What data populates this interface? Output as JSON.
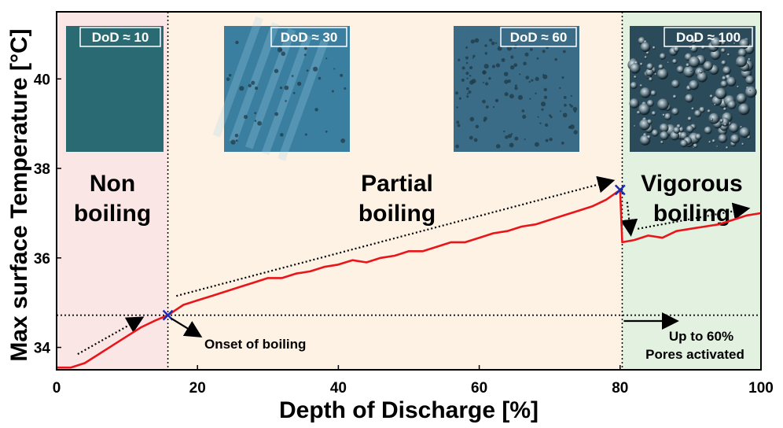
{
  "chart_data": {
    "type": "line",
    "xlabel": "Depth of Discharge [%]",
    "ylabel": "Max surface Temperature [°C]",
    "xlim": [
      0,
      100
    ],
    "ylim": [
      33.5,
      41.5
    ],
    "x_ticks": [
      0,
      20,
      40,
      60,
      80,
      100
    ],
    "y_ticks": [
      34,
      36,
      38,
      40
    ],
    "grid": false,
    "series": [
      {
        "color": "#e8151b",
        "x": [
          0,
          2,
          4,
          6,
          8,
          10,
          12,
          14,
          15.8,
          18,
          20,
          22,
          24,
          26,
          28,
          30,
          32,
          34,
          36,
          38,
          40,
          42,
          44,
          46,
          48,
          50,
          52,
          54,
          56,
          58,
          60,
          62,
          64,
          66,
          68,
          70,
          72,
          74,
          76,
          78,
          80,
          80.3,
          82,
          84,
          86,
          88,
          90,
          92,
          94,
          96,
          98,
          100
        ],
        "y": [
          33.55,
          33.55,
          33.65,
          33.85,
          34.05,
          34.25,
          34.45,
          34.6,
          34.72,
          34.95,
          35.05,
          35.15,
          35.25,
          35.35,
          35.45,
          35.55,
          35.55,
          35.65,
          35.7,
          35.8,
          35.85,
          35.95,
          35.9,
          36.0,
          36.05,
          36.15,
          36.15,
          36.25,
          36.35,
          36.35,
          36.45,
          36.55,
          36.6,
          36.7,
          36.75,
          36.85,
          36.95,
          37.05,
          37.15,
          37.3,
          37.52,
          36.35,
          36.4,
          36.5,
          36.45,
          36.6,
          36.65,
          36.7,
          36.75,
          36.85,
          36.95,
          37.0
        ]
      }
    ],
    "regions": [
      {
        "label_line1": "Non",
        "label_line2": "boiling",
        "x_range": [
          0,
          15.8
        ],
        "color": "#fbe6e6"
      },
      {
        "label_line1": "Partial",
        "label_line2": "boiling",
        "x_range": [
          15.8,
          80.3
        ],
        "color": "#fdf2e4"
      },
      {
        "label_line1": "Vigorous",
        "label_line2": "boiling",
        "x_range": [
          80.3,
          100
        ],
        "color": "#e3f1e1"
      }
    ],
    "markers": [
      {
        "x": 15.8,
        "y": 34.72,
        "symbol": "x",
        "color": "#1f2aa8"
      },
      {
        "x": 80.0,
        "y": 37.52,
        "symbol": "x",
        "color": "#1f2aa8"
      }
    ],
    "reference_line_y": 34.72,
    "annotations": [
      {
        "text": "Onset of boiling"
      },
      {
        "text_line1": "Up to 60%",
        "text_line2": "Pores activated"
      }
    ],
    "insets": [
      {
        "label": "DoD ≈ 10",
        "style": "smooth"
      },
      {
        "label": "DoD ≈ 30",
        "style": "few-bubbles"
      },
      {
        "label": "DoD ≈ 60",
        "style": "many-small-bubbles"
      },
      {
        "label": "DoD ≈ 100",
        "style": "dense-bubbles"
      }
    ]
  }
}
